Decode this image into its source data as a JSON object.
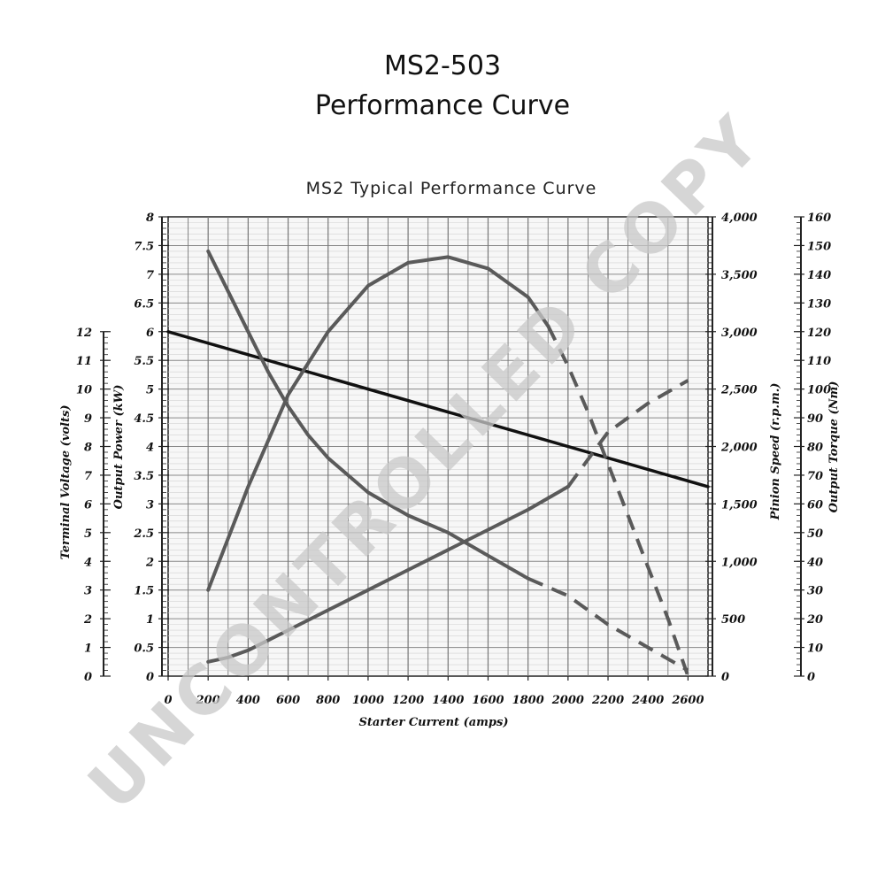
{
  "header": {
    "title_line1": "MS2-503",
    "title_line2": "Performance Curve"
  },
  "watermark": "UNCONTROLLED COPY",
  "chart_data": {
    "type": "line",
    "title": "MS2 Typical Performance Curve",
    "xlabel": "Starter Current  (amps)",
    "xlim": [
      0,
      2700
    ],
    "x_ticks": [
      "0",
      "200",
      "400",
      "600",
      "800",
      "1000",
      "1200",
      "1400",
      "1600",
      "1800",
      "2000",
      "2200",
      "2400",
      "2600"
    ],
    "axes": {
      "terminal_voltage": {
        "label": "Terminal Voltage (volts)",
        "range": [
          0,
          16
        ],
        "ticks": [
          "0",
          "1",
          "2",
          "3",
          "4",
          "5",
          "6",
          "7",
          "8",
          "9",
          "10",
          "11",
          "12"
        ]
      },
      "output_power": {
        "label": "Output Power (kW)",
        "range": [
          0,
          8
        ],
        "ticks": [
          "0",
          "0.5",
          "1",
          "1.5",
          "2",
          "2.5",
          "3",
          "3.5",
          "4",
          "4.5",
          "5",
          "5.5",
          "6",
          "6.5",
          "7",
          "7.5",
          "8"
        ]
      },
      "pinion_speed": {
        "label": "Pinion Speed (r.p.m.)",
        "range": [
          0,
          4000
        ],
        "ticks": [
          "0",
          "500",
          "1,000",
          "1,500",
          "2,000",
          "2,500",
          "3,000",
          "3,500",
          "4,000"
        ]
      },
      "output_torque": {
        "label": "Output Torque (Nm)",
        "range": [
          0,
          160
        ],
        "ticks": [
          "0",
          "10",
          "20",
          "30",
          "40",
          "50",
          "60",
          "70",
          "80",
          "90",
          "100",
          "110",
          "120",
          "130",
          "140",
          "150",
          "160"
        ]
      }
    },
    "series": [
      {
        "axis": "terminal_voltage",
        "color": "#111111",
        "x": [
          0,
          2700
        ],
        "y": [
          12,
          6.6
        ]
      },
      {
        "axis": "output_power",
        "color": "#5a5a5a",
        "x": [
          200,
          400,
          600,
          800,
          1000,
          1200,
          1400,
          1600,
          1800,
          1900,
          2000,
          2100,
          2200,
          2300,
          2400,
          2500,
          2600
        ],
        "y": [
          1.5,
          3.3,
          4.9,
          6.0,
          6.8,
          7.2,
          7.3,
          7.1,
          6.6,
          6.1,
          5.4,
          4.6,
          3.7,
          2.8,
          1.9,
          1.0,
          0
        ],
        "dashed_from": 1900
      },
      {
        "axis": "pinion_speed",
        "color": "#5a5a5a",
        "x": [
          200,
          300,
          400,
          500,
          600,
          700,
          800,
          1000,
          1200,
          1400,
          1600,
          1800,
          2000,
          2200,
          2400,
          2600
        ],
        "y": [
          3700,
          3350,
          3000,
          2650,
          2350,
          2100,
          1900,
          1600,
          1400,
          1250,
          1050,
          850,
          700,
          450,
          250,
          50
        ],
        "dashed_from": 1800
      },
      {
        "axis": "output_torque",
        "color": "#5a5a5a",
        "x": [
          200,
          300,
          400,
          600,
          800,
          1000,
          1200,
          1400,
          1600,
          1800,
          2000,
          2200,
          2400,
          2600
        ],
        "y": [
          5,
          6.5,
          9,
          16,
          23,
          30,
          37,
          44,
          51,
          58,
          66,
          85,
          95,
          103
        ],
        "dashed_from": 2000
      }
    ]
  }
}
